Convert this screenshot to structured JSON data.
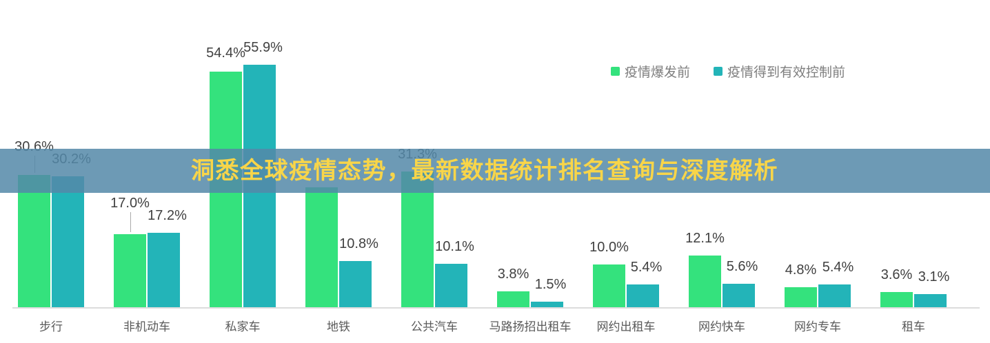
{
  "title_banner": {
    "text": "洞悉全球疫情态势，最新数据统计排名查询与深度解析",
    "text_color": "#f8d549",
    "band_color": "rgba(84,136,168,0.85)"
  },
  "legend": {
    "items": [
      {
        "label": "疫情爆发前",
        "color": "#34e27d"
      },
      {
        "label": "疫情得到有效控制前",
        "color": "#23b4b8"
      }
    ]
  },
  "chart_data": {
    "type": "bar",
    "title": "",
    "xlabel": "",
    "ylabel": "",
    "ylim": [
      0,
      60
    ],
    "value_suffix": "%",
    "grid": false,
    "legend_position": "top-right",
    "axis_line_color": "#dcdcdc",
    "label_color": "#404040",
    "category_label_color": "#5a5a5a",
    "categories": [
      "步行",
      "非机动车",
      "私家车",
      "地铁",
      "公共汽车",
      "马路扬招出租车",
      "网约出租车",
      "网约快车",
      "网约专车",
      "租车"
    ],
    "series": [
      {
        "name": "疫情爆发前",
        "color": "#34e27d",
        "values": [
          30.6,
          17.0,
          54.4,
          27.7,
          31.3,
          3.8,
          10.0,
          12.1,
          4.8,
          3.6
        ],
        "labels": [
          "30.6%",
          "17.0%",
          "54.4%",
          "",
          "31.3%",
          "3.8%",
          "10.0%",
          "12.1%",
          "4.8%",
          "3.6%"
        ],
        "note": "地铁 value label is hidden behind the banner band; 27.7 estimated from bar height"
      },
      {
        "name": "疫情得到有效控制前",
        "color": "#23b4b8",
        "values": [
          30.2,
          17.2,
          55.9,
          10.8,
          10.1,
          1.5,
          5.4,
          5.6,
          5.4,
          3.1
        ],
        "labels": [
          "30.2%",
          "17.2%",
          "55.9%",
          "10.8%",
          "10.1%",
          "1.5%",
          "5.4%",
          "5.6%",
          "5.4%",
          "3.1%"
        ]
      }
    ]
  }
}
